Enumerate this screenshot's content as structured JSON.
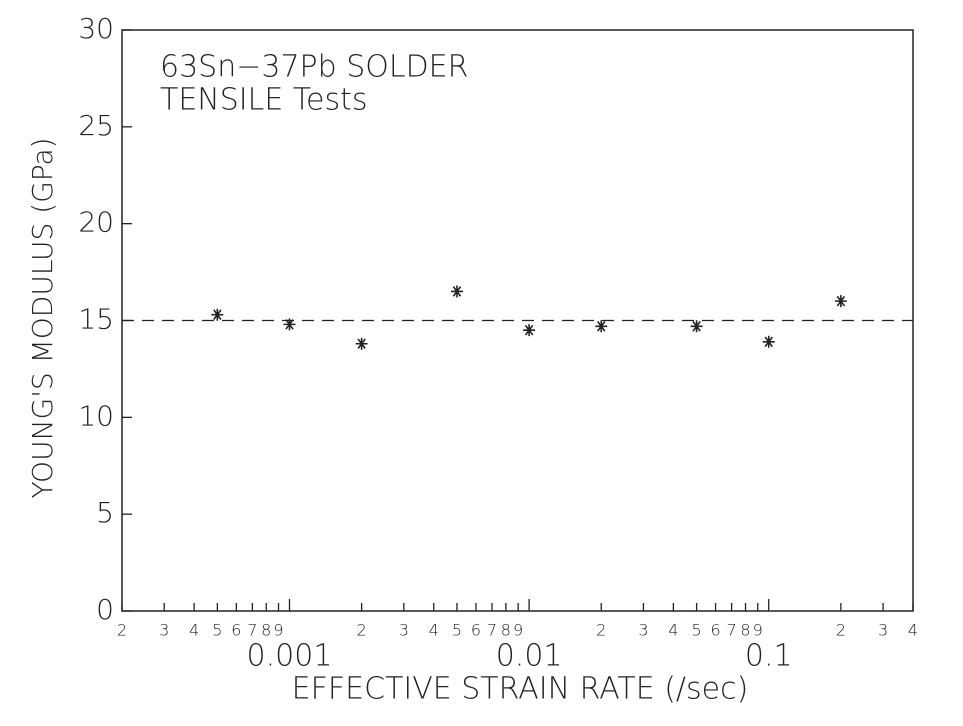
{
  "chart_data": {
    "type": "scatter",
    "title": [
      "63Sn−37Pb SOLDER",
      "TENSILE Tests"
    ],
    "x_label": "EFFECTIVE STRAIN RATE (/sec)",
    "y_label": "YOUNG'S MODULUS (GPa)",
    "x": [
      0.0005,
      0.001,
      0.002,
      0.005,
      0.01,
      0.02,
      0.05,
      0.1,
      0.2
    ],
    "values": [
      15.3,
      14.8,
      13.8,
      16.5,
      14.5,
      14.7,
      14.7,
      13.9,
      16.0
    ],
    "color": "#222222",
    "reference_line": 15,
    "xscale": "log",
    "xlim": [
      0.0002,
      0.4
    ],
    "xticks": [
      {
        "value": 0.0002,
        "label": "2"
      },
      {
        "value": 0.0003,
        "label": "3"
      },
      {
        "value": 0.0004,
        "label": "4"
      },
      {
        "value": 0.0005,
        "label": "5"
      },
      {
        "value": 0.0006,
        "label": "6"
      },
      {
        "value": 0.0007,
        "label": "7"
      },
      {
        "value": 0.0008,
        "label": "8"
      },
      {
        "value": 0.0009,
        "label": "9"
      },
      0.001,
      {
        "value": 0.002,
        "label": "2"
      },
      {
        "value": 0.003,
        "label": "3"
      },
      {
        "value": 0.004,
        "label": "4"
      },
      {
        "value": 0.005,
        "label": "5"
      },
      {
        "value": 0.006,
        "label": "6"
      },
      {
        "value": 0.007,
        "label": "7"
      },
      {
        "value": 0.008,
        "label": "8"
      },
      {
        "value": 0.009,
        "label": "9"
      },
      0.01,
      {
        "value": 0.02,
        "label": "2"
      },
      {
        "value": 0.03,
        "label": "3"
      },
      {
        "value": 0.04,
        "label": "4"
      },
      {
        "value": 0.05,
        "label": "5"
      },
      {
        "value": 0.06,
        "label": "6"
      },
      {
        "value": 0.07,
        "label": "7"
      },
      {
        "value": 0.08,
        "label": "8"
      },
      {
        "value": 0.09,
        "label": "9"
      },
      0.1,
      {
        "value": 0.2,
        "label": "2"
      },
      {
        "value": 0.3,
        "label": "3"
      },
      {
        "value": 0.4,
        "label": "4"
      }
    ],
    "ylim": [
      0,
      30
    ],
    "yticks": [
      0,
      5,
      10,
      15,
      20,
      25,
      30
    ],
    "grid": false
  }
}
